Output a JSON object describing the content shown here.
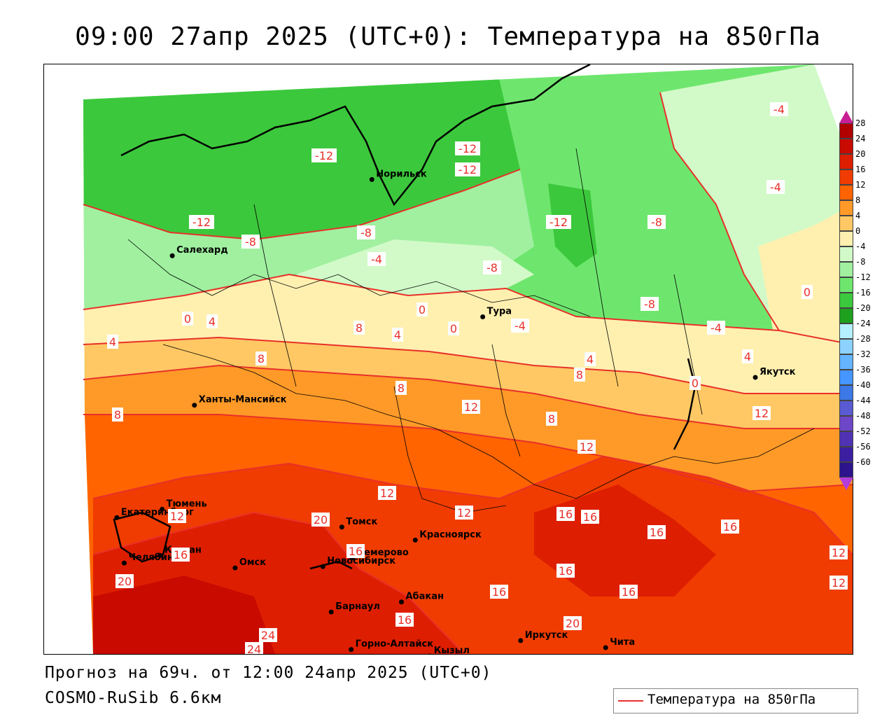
{
  "title": "09:00 27апр 2025 (UTC+0): Температура на 850гПа",
  "forecast_line": "Прогноз на 69ч. от 12:00 24апр 2025 (UTC+0)",
  "model_line": "COSMO-RuSib 6.6км",
  "legend": {
    "label": "Температура на 850гПа",
    "line_color": "#e8302a"
  },
  "colorbar": {
    "ticks": [
      "28",
      "24",
      "20",
      "16",
      "12",
      "8",
      "4",
      "0",
      "-4",
      "-8",
      "-12",
      "-16",
      "-20",
      "-24",
      "-28",
      "-32",
      "-36",
      "-40",
      "-44",
      "-48",
      "-52",
      "-56",
      "-60"
    ],
    "colors": [
      "#b00000",
      "#c80a00",
      "#de1e00",
      "#f03c00",
      "#ff6400",
      "#ff9a28",
      "#ffc864",
      "#fff0b0",
      "#d2fac8",
      "#a0f0a0",
      "#6ee66e",
      "#3cc83c",
      "#1ea01e",
      "#b4f0ff",
      "#8cd2ff",
      "#64b4ff",
      "#4696ff",
      "#3c78e6",
      "#5a5ad2",
      "#6e46c8",
      "#5032b4",
      "#3c1ea0",
      "#2d148c"
    ],
    "top_color": "#c81e96",
    "bottom_color": "#b43cdc"
  },
  "cities": [
    {
      "name": "Норильск",
      "lon": 88.2,
      "lat": 69.35
    },
    {
      "name": "Якутск",
      "lon": 129.7,
      "lat": 62.03
    },
    {
      "name": "Салехард",
      "lon": 66.6,
      "lat": 66.53
    },
    {
      "name": "Тура",
      "lon": 100.2,
      "lat": 64.27
    },
    {
      "name": "Ханты-Мансийск",
      "lon": 69.0,
      "lat": 61.0
    },
    {
      "name": "Екатеринбург",
      "lon": 60.6,
      "lat": 56.84
    },
    {
      "name": "Тюмень",
      "lon": 65.5,
      "lat": 57.15
    },
    {
      "name": "Челябинск",
      "lon": 61.4,
      "lat": 55.16
    },
    {
      "name": "Курган",
      "lon": 65.3,
      "lat": 55.44
    },
    {
      "name": "Омск",
      "lon": 73.4,
      "lat": 54.98
    },
    {
      "name": "Новосибирск",
      "lon": 82.9,
      "lat": 55.03
    },
    {
      "name": "Томск",
      "lon": 84.95,
      "lat": 56.49
    },
    {
      "name": "Кемерово",
      "lon": 86.1,
      "lat": 55.35
    },
    {
      "name": "Красноярск",
      "lon": 92.9,
      "lat": 56.01
    },
    {
      "name": "Барнаул",
      "lon": 83.8,
      "lat": 53.35
    },
    {
      "name": "Абакан",
      "lon": 91.4,
      "lat": 53.72
    },
    {
      "name": "Горно-Алтайск",
      "lon": 85.96,
      "lat": 51.96
    },
    {
      "name": "Кызыл",
      "lon": 94.45,
      "lat": 51.72
    },
    {
      "name": "Иркутск",
      "lon": 104.3,
      "lat": 52.29
    },
    {
      "name": "Чита",
      "lon": 113.5,
      "lat": 52.03
    }
  ],
  "contour_labels": [
    "-12",
    "-12",
    "-12",
    "-12",
    "-12",
    "-8",
    "-8",
    "-8",
    "-8",
    "-8",
    "-4",
    "-4",
    "-4",
    "-4",
    "-4",
    "0",
    "0",
    "0",
    "0",
    "0",
    "4",
    "4",
    "4",
    "4",
    "4",
    "8",
    "8",
    "8",
    "8",
    "8",
    "8",
    "12",
    "12",
    "12",
    "12",
    "12",
    "12",
    "12",
    "12",
    "16",
    "16",
    "16",
    "16",
    "16",
    "16",
    "16",
    "16",
    "16",
    "16",
    "20",
    "20",
    "20",
    "24",
    "24"
  ]
}
